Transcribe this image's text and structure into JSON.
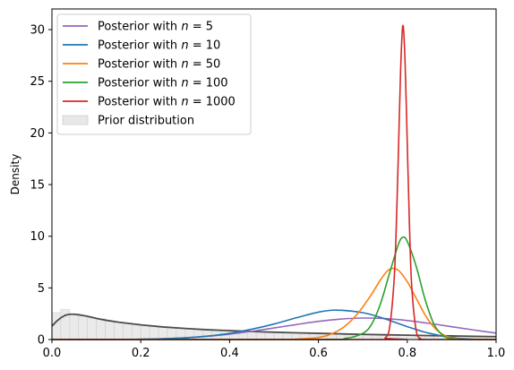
{
  "chart_data": {
    "type": "line",
    "title": "",
    "xlabel": "",
    "ylabel": "Density",
    "xlim": [
      0,
      1
    ],
    "ylim": [
      0,
      32
    ],
    "xticks": [
      "0.0",
      "0.2",
      "0.4",
      "0.6",
      "0.8",
      "1.0"
    ],
    "yticks": [
      "0",
      "5",
      "10",
      "15",
      "20",
      "25",
      "30"
    ],
    "grid": false,
    "legend_position": "top-left",
    "prior": {
      "name": "Prior distribution",
      "kind": "histogram",
      "color": "#cccccc",
      "bins": [
        0.0,
        0.02,
        0.04,
        0.06,
        0.08,
        0.1,
        0.12,
        0.14,
        0.16,
        0.18,
        0.2,
        0.22,
        0.24,
        0.26,
        0.28,
        0.3,
        0.32,
        0.34,
        0.36,
        0.38,
        0.4,
        0.42,
        0.44,
        0.46,
        0.48,
        0.5,
        0.52,
        0.54,
        0.56,
        0.58,
        0.6,
        0.62,
        0.64,
        0.66,
        0.68,
        0.7,
        0.72,
        0.74,
        0.76,
        0.78,
        0.8,
        0.82,
        0.84,
        0.86,
        0.88,
        0.9,
        0.92,
        0.94,
        0.96,
        0.98,
        1.0
      ],
      "heights": [
        2.6,
        2.9,
        2.4,
        2.3,
        2.1,
        2.0,
        1.8,
        1.7,
        1.6,
        1.5,
        1.4,
        1.3,
        1.25,
        1.15,
        1.1,
        1.05,
        1.0,
        0.95,
        0.9,
        0.88,
        0.85,
        0.8,
        0.78,
        0.75,
        0.72,
        0.7,
        0.68,
        0.65,
        0.62,
        0.6,
        0.58,
        0.56,
        0.54,
        0.52,
        0.5,
        0.48,
        0.47,
        0.45,
        0.43,
        0.42,
        0.4,
        0.38,
        0.37,
        0.35,
        0.34,
        0.32,
        0.31,
        0.3,
        0.28,
        0.27
      ],
      "density_curve": {
        "color": "#4d4d4d",
        "x": [
          0.0,
          0.01,
          0.02,
          0.03,
          0.04,
          0.05,
          0.06,
          0.08,
          0.1,
          0.12,
          0.15,
          0.2,
          0.25,
          0.3,
          0.35,
          0.4,
          0.45,
          0.5,
          0.55,
          0.6,
          0.65,
          0.7,
          0.75,
          0.8,
          0.85,
          0.9,
          0.95,
          1.0
        ],
        "y": [
          1.3,
          1.75,
          2.1,
          2.35,
          2.45,
          2.45,
          2.4,
          2.25,
          2.05,
          1.88,
          1.68,
          1.42,
          1.22,
          1.07,
          0.95,
          0.86,
          0.78,
          0.71,
          0.65,
          0.6,
          0.55,
          0.5,
          0.46,
          0.42,
          0.38,
          0.35,
          0.31,
          0.28
        ]
      }
    },
    "series": [
      {
        "name": "Posterior with $n = 5$",
        "label_parts": [
          "Posterior with ",
          "n",
          " = 5"
        ],
        "color": "#9467bd",
        "x": [
          0.0,
          0.1,
          0.2,
          0.25,
          0.3,
          0.35,
          0.4,
          0.45,
          0.5,
          0.55,
          0.6,
          0.65,
          0.7,
          0.75,
          0.8,
          0.85,
          0.9,
          0.95,
          1.0
        ],
        "y": [
          0.0,
          0.0,
          0.03,
          0.08,
          0.17,
          0.32,
          0.52,
          0.8,
          1.12,
          1.45,
          1.76,
          1.98,
          2.08,
          2.03,
          1.84,
          1.56,
          1.24,
          0.92,
          0.62
        ]
      },
      {
        "name": "Posterior with $n = 10$",
        "label_parts": [
          "Posterior with ",
          "n",
          " = 10"
        ],
        "color": "#1f77b4",
        "x": [
          0.0,
          0.15,
          0.2,
          0.25,
          0.3,
          0.35,
          0.4,
          0.45,
          0.5,
          0.55,
          0.6,
          0.64,
          0.7,
          0.75,
          0.8,
          0.85,
          0.9,
          0.95,
          1.0
        ],
        "y": [
          0.0,
          0.0,
          0.03,
          0.07,
          0.16,
          0.33,
          0.6,
          1.0,
          1.5,
          2.1,
          2.65,
          2.85,
          2.6,
          2.0,
          1.25,
          0.6,
          0.2,
          0.03,
          0.0
        ]
      },
      {
        "name": "Posterior with $n = 50$",
        "label_parts": [
          "Posterior with ",
          "n",
          " = 50"
        ],
        "color": "#ff7f0e",
        "x": [
          0.0,
          0.5,
          0.55,
          0.6,
          0.63,
          0.66,
          0.69,
          0.72,
          0.74,
          0.76,
          0.78,
          0.8,
          0.82,
          0.84,
          0.86,
          0.88,
          0.9,
          0.93,
          1.0
        ],
        "y": [
          0.0,
          0.0,
          0.04,
          0.2,
          0.55,
          1.3,
          2.6,
          4.4,
          5.8,
          6.8,
          6.7,
          5.6,
          4.0,
          2.4,
          1.2,
          0.5,
          0.15,
          0.02,
          0.0
        ]
      },
      {
        "name": "Posterior with $n = 100$",
        "label_parts": [
          "Posterior with ",
          "n",
          " = 100"
        ],
        "color": "#2ca02c",
        "x": [
          0.0,
          0.6,
          0.66,
          0.7,
          0.72,
          0.74,
          0.76,
          0.78,
          0.79,
          0.8,
          0.82,
          0.84,
          0.86,
          0.88,
          0.9,
          0.93,
          1.0
        ],
        "y": [
          0.0,
          0.0,
          0.1,
          0.6,
          1.5,
          3.5,
          6.4,
          9.2,
          9.9,
          9.5,
          7.1,
          3.9,
          1.5,
          0.4,
          0.08,
          0.0,
          0.0
        ]
      },
      {
        "name": "Posterior with $n = 1000$",
        "label_parts": [
          "Posterior with ",
          "n",
          " = 1000"
        ],
        "color": "#d62728",
        "x": [
          0.0,
          0.74,
          0.75,
          0.76,
          0.77,
          0.775,
          0.78,
          0.785,
          0.79,
          0.795,
          0.8,
          0.805,
          0.81,
          0.82,
          0.83,
          0.84,
          1.0
        ],
        "y": [
          0.0,
          0.0,
          0.15,
          1.1,
          5.5,
          10.5,
          18.0,
          26.0,
          30.4,
          27.0,
          19.0,
          11.0,
          5.2,
          0.9,
          0.08,
          0.0,
          0.0
        ]
      }
    ]
  }
}
